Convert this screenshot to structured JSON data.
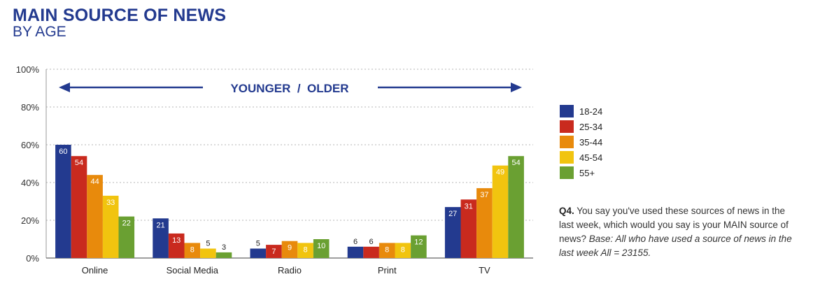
{
  "title": "MAIN SOURCE OF NEWS",
  "subtitle": "BY AGE",
  "arrow_label": "YOUNGER  /  OLDER",
  "note": {
    "prefix": "Q4.",
    "question": " You say you've used these sources of news in the last week, which would you say is your MAIN source of news? ",
    "base": "Base: All who have used a source of news in the last week All = 23155."
  },
  "colors": {
    "title": "#233a8f",
    "arrow": "#233a8f"
  },
  "chart_data": {
    "type": "bar",
    "categories": [
      "Online",
      "Social Media",
      "Radio",
      "Print",
      "TV"
    ],
    "series": [
      {
        "name": "18-24",
        "color": "#233a8f",
        "values": [
          60,
          21,
          5,
          6,
          27
        ]
      },
      {
        "name": "25-34",
        "color": "#c92a1e",
        "values": [
          54,
          13,
          7,
          6,
          31
        ]
      },
      {
        "name": "35-44",
        "color": "#e88a0c",
        "values": [
          44,
          8,
          9,
          8,
          37
        ]
      },
      {
        "name": "45-54",
        "color": "#f1c40f",
        "values": [
          33,
          5,
          8,
          8,
          49
        ]
      },
      {
        "name": "55+",
        "color": "#6aa032",
        "values": [
          22,
          3,
          10,
          12,
          54
        ]
      }
    ],
    "yticks": [
      "0%",
      "20%",
      "40%",
      "60%",
      "80%",
      "100%"
    ],
    "ylim": [
      0,
      100
    ],
    "grid": true,
    "legend": "right"
  }
}
